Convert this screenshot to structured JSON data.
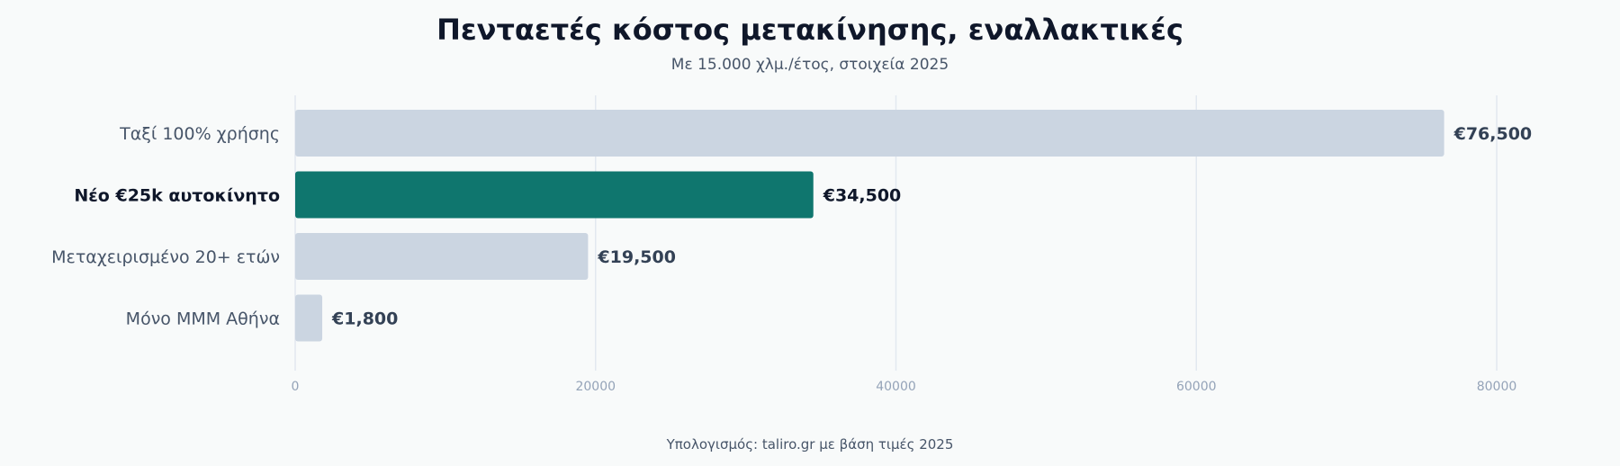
{
  "chart_data": {
    "type": "bar",
    "orientation": "horizontal",
    "title": "Πενταετές κόστος μετακίνησης, εναλλακτικές",
    "subtitle": "Με 15.000 χλμ./έτος, στοιχεία 2025",
    "source": "Υπολογισμός: taliro.gr με βάση τιμές 2025",
    "categories": [
      "Ταξί 100% χρήσης",
      "Νέο €25k αυτοκίνητο",
      "Μεταχειρισμένο 20+ ετών",
      "Μόνο ΜΜΜ Αθήνα"
    ],
    "values": [
      76500,
      34500,
      19500,
      1800
    ],
    "value_labels": [
      "€76,500",
      "€34,500",
      "€19,500",
      "€1,800"
    ],
    "highlight_index": 1,
    "xlim": [
      0,
      80000
    ],
    "xticks": [
      0,
      20000,
      40000,
      60000,
      80000
    ],
    "xtick_labels": [
      "0",
      "20000",
      "40000",
      "60000",
      "80000"
    ],
    "grid": "vertical",
    "colors": {
      "default_bar": "#cbd5e1",
      "highlight_bar": "#0f766e"
    }
  }
}
